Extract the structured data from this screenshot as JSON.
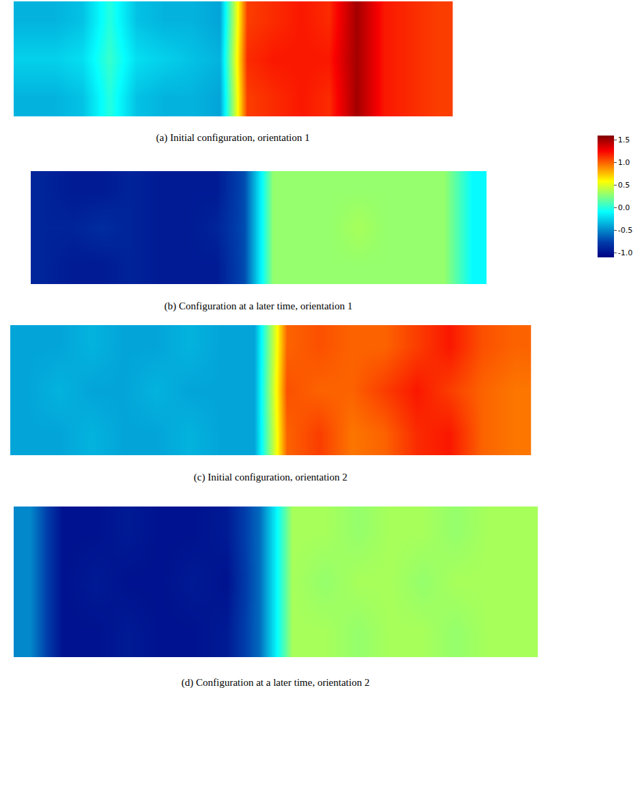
{
  "chart_data": {
    "type": "heatmap",
    "tick_labels": false,
    "colorbar": {
      "range": [
        -1.1,
        1.6
      ],
      "ticks": [
        {
          "value": -1,
          "label": "-1.0"
        },
        {
          "value": -0.5,
          "label": "-0.5"
        },
        {
          "value": 0,
          "label": "0.0"
        },
        {
          "value": 0.5,
          "label": "0.5"
        },
        {
          "value": 1,
          "label": "1.0"
        },
        {
          "value": 1.5,
          "label": "1.5"
        }
      ]
    },
    "panels": [
      {
        "caption": "(a) Initial configuration, orientation 1",
        "cells": [
          [
            -0.35,
            -0.35,
            -0.3,
            0.0,
            -0.3,
            -0.35,
            -0.35,
            -0.4,
            1.1,
            1.15,
            1.2,
            1.15,
            1.5,
            1.2,
            1.15,
            1.1
          ],
          [
            -0.25,
            -0.25,
            -0.2,
            0.05,
            -0.2,
            -0.25,
            -0.3,
            -0.35,
            1.15,
            1.2,
            1.2,
            1.2,
            1.5,
            1.2,
            1.15,
            1.1
          ],
          [
            -0.35,
            -0.35,
            -0.3,
            0.0,
            -0.3,
            -0.35,
            -0.35,
            -0.4,
            1.1,
            1.15,
            1.2,
            1.15,
            1.5,
            1.2,
            1.15,
            1.1
          ]
        ]
      },
      {
        "caption": "(b) Configuration at a later time, orientation 1",
        "cells": [
          [
            -0.9,
            -0.95,
            -0.95,
            -0.9,
            -0.95,
            -0.95,
            -0.95,
            -0.7,
            0.3,
            0.3,
            0.3,
            0.3,
            0.3,
            0.3,
            0.3,
            -0.1
          ],
          [
            -0.9,
            -0.9,
            -0.85,
            -0.9,
            -0.95,
            -0.95,
            -0.9,
            -0.7,
            0.3,
            0.3,
            0.3,
            0.35,
            0.3,
            0.3,
            0.3,
            -0.1
          ],
          [
            -0.9,
            -0.95,
            -0.95,
            -0.9,
            -0.95,
            -0.95,
            -0.95,
            -0.7,
            0.3,
            0.3,
            0.3,
            0.3,
            0.3,
            0.3,
            0.3,
            -0.1
          ]
        ]
      },
      {
        "caption": "(c) Initial configuration, orientation 2",
        "cells": [
          [
            -0.4,
            -0.4,
            -0.35,
            -0.4,
            -0.4,
            -0.35,
            -0.4,
            -0.4,
            1.0,
            1.1,
            0.95,
            1.0,
            1.15,
            1.2,
            1.0,
            0.95
          ],
          [
            -0.4,
            -0.35,
            -0.4,
            -0.4,
            -0.35,
            -0.4,
            -0.4,
            -0.4,
            1.05,
            1.0,
            1.0,
            1.1,
            1.2,
            1.1,
            1.0,
            0.95
          ],
          [
            -0.4,
            -0.4,
            -0.35,
            -0.4,
            -0.4,
            -0.35,
            -0.4,
            -0.4,
            1.0,
            1.05,
            1.0,
            1.0,
            1.1,
            1.2,
            1.05,
            1.0
          ]
        ]
      },
      {
        "caption": "(d) Configuration at a later time, orientation 2",
        "cells": [
          [
            -0.5,
            -1.0,
            -1.0,
            -0.95,
            -1.0,
            -1.0,
            -0.95,
            -0.6,
            0.35,
            0.35,
            0.3,
            0.35,
            0.35,
            0.3,
            0.35,
            0.35
          ],
          [
            -0.5,
            -1.0,
            -0.95,
            -1.0,
            -1.0,
            -0.95,
            -1.0,
            -0.6,
            0.35,
            0.3,
            0.35,
            0.35,
            0.3,
            0.35,
            0.35,
            0.35
          ],
          [
            -0.5,
            -1.0,
            -1.0,
            -0.95,
            -1.0,
            -1.0,
            -0.95,
            -0.6,
            0.35,
            0.35,
            0.3,
            0.35,
            0.35,
            0.3,
            0.35,
            0.35
          ]
        ]
      }
    ]
  }
}
